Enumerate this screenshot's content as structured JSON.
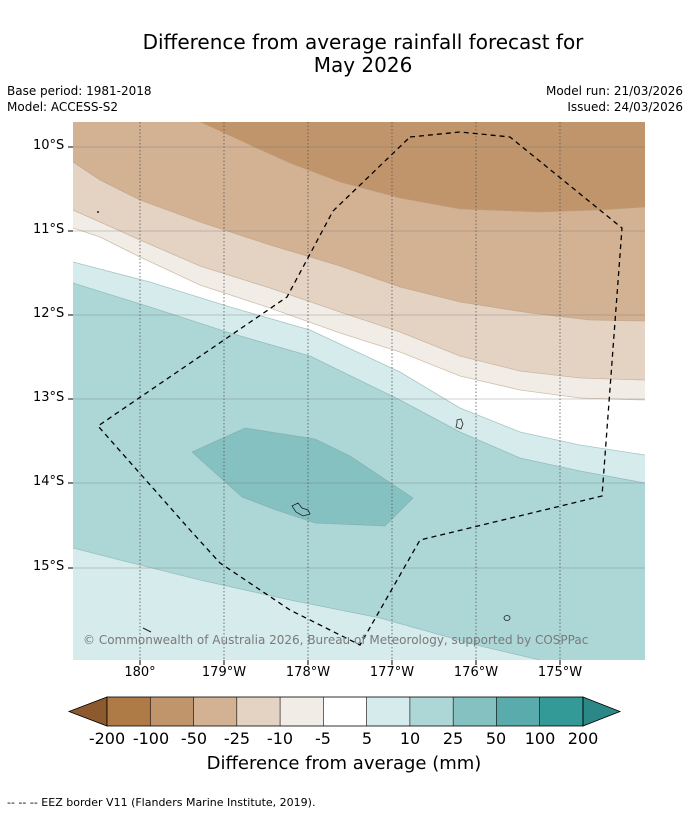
{
  "title": {
    "line1": "Difference from average rainfall forecast for",
    "line2": "May 2026"
  },
  "meta": {
    "base_period": "Base period: 1981-2018",
    "model": "Model: ACCESS-S2",
    "model_run": "Model run: 21/03/2026",
    "issued": "Issued: 24/03/2026"
  },
  "map": {
    "lat_labels": [
      "10°S",
      "11°S",
      "12°S",
      "13°S",
      "14°S",
      "15°S"
    ],
    "lon_labels": [
      "180°",
      "179°W",
      "178°W",
      "177°W",
      "176°W",
      "175°W"
    ],
    "copyright": "© Commonwealth of Australia 2026, Bureau of Meteorology, supported by COSPPac"
  },
  "colorbar": {
    "ticks": [
      "-200",
      "-100",
      "-50",
      "-25",
      "-10",
      "-5",
      "5",
      "10",
      "25",
      "50",
      "100",
      "200"
    ],
    "colors": [
      "#8c5a2c",
      "#ae7a45",
      "#c1956b",
      "#d3b294",
      "#e4d3c3",
      "#f1ece6",
      "#ffffff",
      "#d6ebeb",
      "#add7d7",
      "#85c1c1",
      "#5aabab",
      "#339a98",
      "#2b8887"
    ],
    "label": "Difference from average (mm)"
  },
  "footnote": "--  --  -- EEZ border V11 (Flanders Marine Institute, 2019)."
}
